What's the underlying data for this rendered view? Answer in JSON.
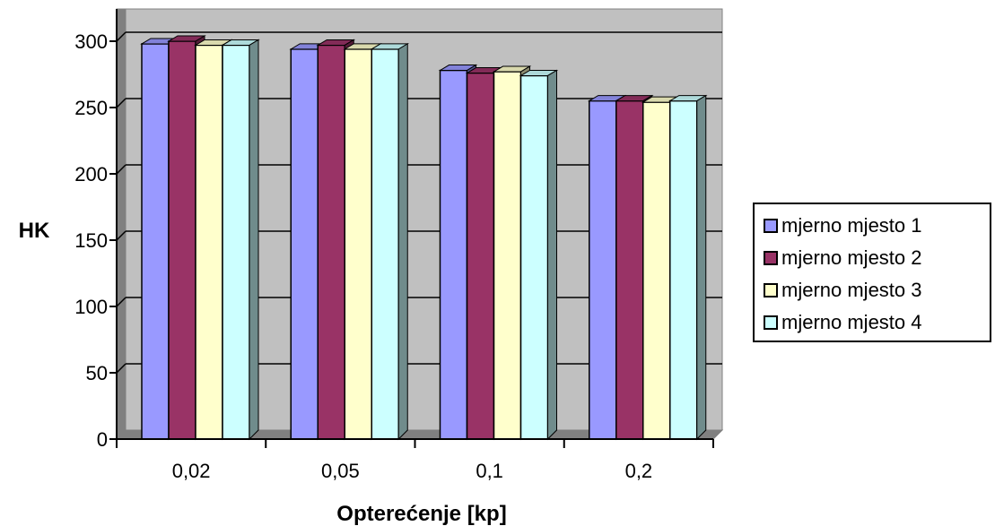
{
  "chart_data": {
    "type": "bar",
    "xlabel": "Opterećenje [kp]",
    "ylabel": "HK",
    "ylim": [
      0,
      300
    ],
    "yticks": [
      0,
      50,
      100,
      150,
      200,
      250,
      300
    ],
    "categories": [
      "0,02",
      "0,05",
      "0,1",
      "0,2"
    ],
    "series": [
      {
        "name": "mjerno mjesto 1",
        "color": "#9999ff",
        "values": [
          298,
          294,
          278,
          255
        ]
      },
      {
        "name": "mjerno mjesto 2",
        "color": "#993366",
        "values": [
          300,
          297,
          276,
          255
        ]
      },
      {
        "name": "mjerno mjesto 3",
        "color": "#ffffcc",
        "values": [
          297,
          294,
          277,
          254
        ]
      },
      {
        "name": "mjerno mjesto 4",
        "color": "#ccffff",
        "values": [
          297,
          294,
          274,
          255
        ]
      }
    ],
    "grid": true,
    "legend": "right",
    "background": "#c0c0c0"
  }
}
